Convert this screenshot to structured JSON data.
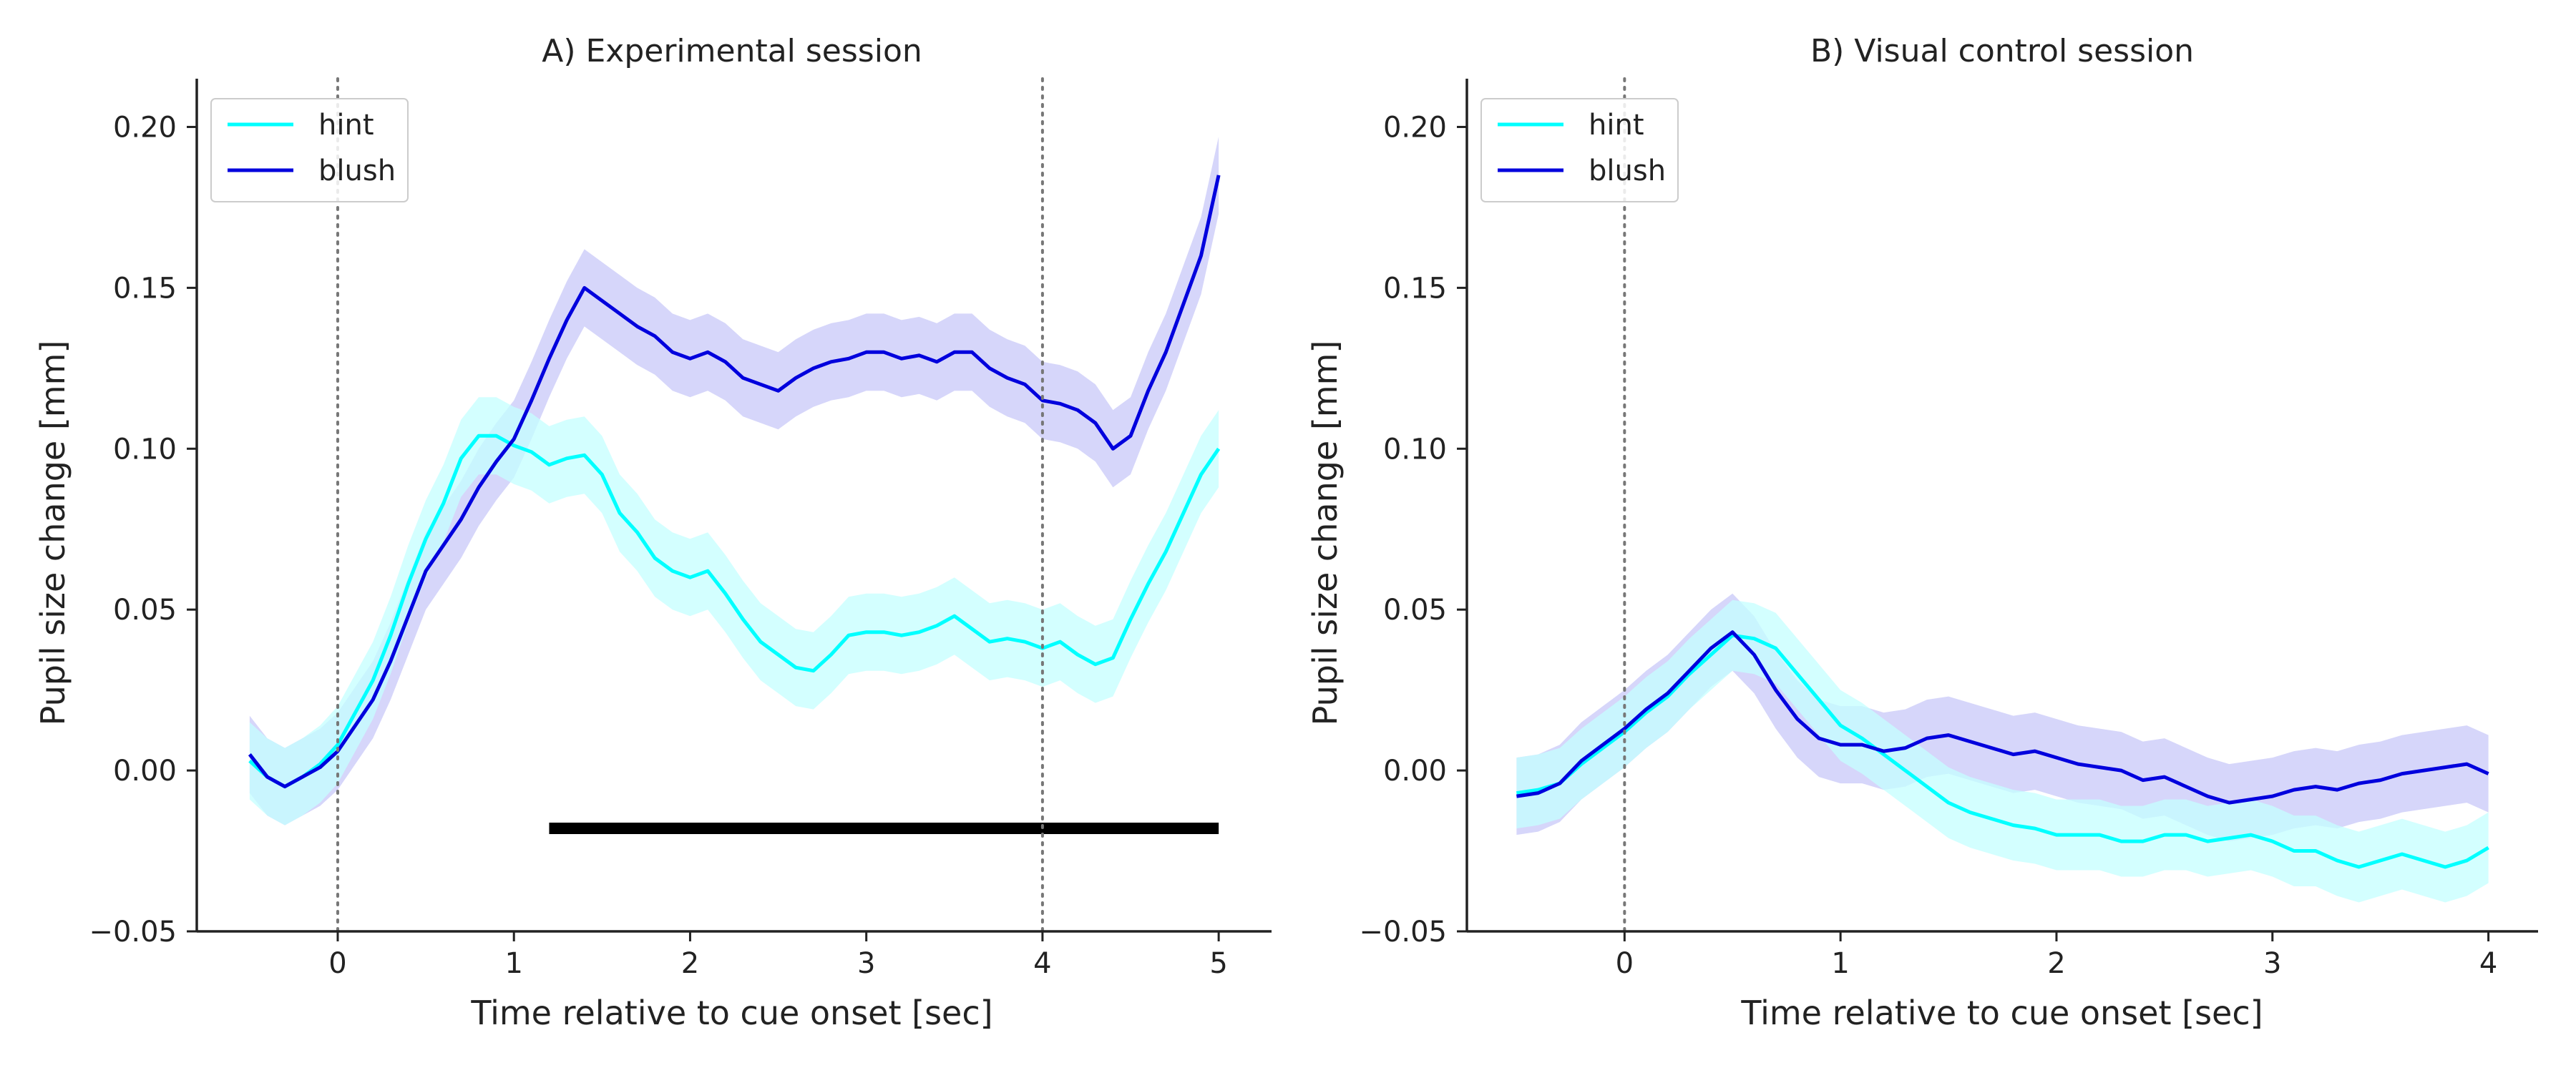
{
  "chart_data": [
    {
      "type": "line",
      "title": "A) Experimental session",
      "xlabel": "Time relative to cue onset [sec]",
      "ylabel": "Pupil size change [mm]",
      "xlim": [
        -0.8,
        5.3
      ],
      "ylim": [
        -0.05,
        0.215
      ],
      "xticks": [
        0,
        1,
        2,
        3,
        4,
        5
      ],
      "yticks": [
        -0.05,
        0.0,
        0.05,
        0.1,
        0.15,
        0.2
      ],
      "xtick_labels": [
        "0",
        "1",
        "2",
        "3",
        "4",
        "5"
      ],
      "ytick_labels": [
        "−0.05",
        "0.00",
        "0.05",
        "0.10",
        "0.15",
        "0.20"
      ],
      "vlines": [
        0,
        4
      ],
      "grid": false,
      "legend_position": "top-left",
      "significance_bar": {
        "x": [
          1.2,
          5.0
        ],
        "y": -0.018
      },
      "series": [
        {
          "name": "hint",
          "color": "#00FFFF",
          "x": [
            -0.5,
            -0.4,
            -0.3,
            -0.2,
            -0.1,
            0.0,
            0.1,
            0.2,
            0.3,
            0.4,
            0.5,
            0.6,
            0.7,
            0.8,
            0.9,
            1.0,
            1.1,
            1.2,
            1.3,
            1.4,
            1.5,
            1.6,
            1.7,
            1.8,
            1.9,
            2.0,
            2.1,
            2.2,
            2.3,
            2.4,
            2.5,
            2.6,
            2.7,
            2.8,
            2.9,
            3.0,
            3.1,
            3.2,
            3.3,
            3.4,
            3.5,
            3.6,
            3.7,
            3.8,
            3.9,
            4.0,
            4.1,
            4.2,
            4.3,
            4.4,
            4.5,
            4.6,
            4.7,
            4.8,
            4.9,
            5.0
          ],
          "y": [
            0.003,
            -0.002,
            -0.005,
            -0.002,
            0.002,
            0.008,
            0.018,
            0.028,
            0.042,
            0.058,
            0.072,
            0.083,
            0.097,
            0.104,
            0.104,
            0.101,
            0.099,
            0.095,
            0.097,
            0.098,
            0.092,
            0.08,
            0.074,
            0.066,
            0.062,
            0.06,
            0.062,
            0.055,
            0.047,
            0.04,
            0.036,
            0.032,
            0.031,
            0.036,
            0.042,
            0.043,
            0.043,
            0.042,
            0.043,
            0.045,
            0.048,
            0.044,
            0.04,
            0.041,
            0.04,
            0.038,
            0.04,
            0.036,
            0.033,
            0.035,
            0.047,
            0.058,
            0.068,
            0.08,
            0.092,
            0.1
          ],
          "ci_halfwidth": 0.012
        },
        {
          "name": "blush",
          "color": "#0000DD",
          "x": [
            -0.5,
            -0.4,
            -0.3,
            -0.2,
            -0.1,
            0.0,
            0.1,
            0.2,
            0.3,
            0.4,
            0.5,
            0.6,
            0.7,
            0.8,
            0.9,
            1.0,
            1.1,
            1.2,
            1.3,
            1.4,
            1.5,
            1.6,
            1.7,
            1.8,
            1.9,
            2.0,
            2.1,
            2.2,
            2.3,
            2.4,
            2.5,
            2.6,
            2.7,
            2.8,
            2.9,
            3.0,
            3.1,
            3.2,
            3.3,
            3.4,
            3.5,
            3.6,
            3.7,
            3.8,
            3.9,
            4.0,
            4.1,
            4.2,
            4.3,
            4.4,
            4.5,
            4.6,
            4.7,
            4.8,
            4.9,
            5.0
          ],
          "y": [
            0.005,
            -0.002,
            -0.005,
            -0.002,
            0.001,
            0.006,
            0.014,
            0.022,
            0.034,
            0.048,
            0.062,
            0.07,
            0.078,
            0.088,
            0.096,
            0.103,
            0.115,
            0.128,
            0.14,
            0.15,
            0.146,
            0.142,
            0.138,
            0.135,
            0.13,
            0.128,
            0.13,
            0.127,
            0.122,
            0.12,
            0.118,
            0.122,
            0.125,
            0.127,
            0.128,
            0.13,
            0.13,
            0.128,
            0.129,
            0.127,
            0.13,
            0.13,
            0.125,
            0.122,
            0.12,
            0.115,
            0.114,
            0.112,
            0.108,
            0.1,
            0.104,
            0.118,
            0.13,
            0.145,
            0.16,
            0.185
          ],
          "ci_halfwidth": 0.012
        }
      ]
    },
    {
      "type": "line",
      "title": "B) Visual control session",
      "xlabel": "Time relative to cue onset [sec]",
      "ylabel": "Pupil size change [mm]",
      "xlim": [
        -0.73,
        4.23
      ],
      "ylim": [
        -0.05,
        0.215
      ],
      "xticks": [
        0,
        1,
        2,
        3,
        4
      ],
      "yticks": [
        -0.05,
        0.0,
        0.05,
        0.1,
        0.15,
        0.2
      ],
      "xtick_labels": [
        "0",
        "1",
        "2",
        "3",
        "4"
      ],
      "ytick_labels": [
        "−0.05",
        "0.00",
        "0.05",
        "0.10",
        "0.15",
        "0.20"
      ],
      "vlines": [
        0
      ],
      "grid": false,
      "legend_position": "top-left",
      "series": [
        {
          "name": "hint",
          "color": "#00FFFF",
          "x": [
            -0.5,
            -0.4,
            -0.3,
            -0.2,
            -0.1,
            0.0,
            0.1,
            0.2,
            0.3,
            0.4,
            0.5,
            0.6,
            0.7,
            0.8,
            0.9,
            1.0,
            1.1,
            1.2,
            1.3,
            1.4,
            1.5,
            1.6,
            1.7,
            1.8,
            1.9,
            2.0,
            2.1,
            2.2,
            2.3,
            2.4,
            2.5,
            2.6,
            2.7,
            2.8,
            2.9,
            3.0,
            3.1,
            3.2,
            3.3,
            3.4,
            3.5,
            3.6,
            3.7,
            3.8,
            3.9,
            4.0
          ],
          "y": [
            -0.007,
            -0.006,
            -0.004,
            0.002,
            0.007,
            0.012,
            0.018,
            0.023,
            0.03,
            0.036,
            0.042,
            0.041,
            0.038,
            0.03,
            0.022,
            0.014,
            0.01,
            0.005,
            0.0,
            -0.005,
            -0.01,
            -0.013,
            -0.015,
            -0.017,
            -0.018,
            -0.02,
            -0.02,
            -0.02,
            -0.022,
            -0.022,
            -0.02,
            -0.02,
            -0.022,
            -0.021,
            -0.02,
            -0.022,
            -0.025,
            -0.025,
            -0.028,
            -0.03,
            -0.028,
            -0.026,
            -0.028,
            -0.03,
            -0.028,
            -0.024
          ],
          "ci_halfwidth": 0.011
        },
        {
          "name": "blush",
          "color": "#0000DD",
          "x": [
            -0.5,
            -0.4,
            -0.3,
            -0.2,
            -0.1,
            0.0,
            0.1,
            0.2,
            0.3,
            0.4,
            0.5,
            0.6,
            0.7,
            0.8,
            0.9,
            1.0,
            1.1,
            1.2,
            1.3,
            1.4,
            1.5,
            1.6,
            1.7,
            1.8,
            1.9,
            2.0,
            2.1,
            2.2,
            2.3,
            2.4,
            2.5,
            2.6,
            2.7,
            2.8,
            2.9,
            3.0,
            3.1,
            3.2,
            3.3,
            3.4,
            3.5,
            3.6,
            3.7,
            3.8,
            3.9,
            4.0
          ],
          "y": [
            -0.008,
            -0.007,
            -0.004,
            0.003,
            0.008,
            0.013,
            0.019,
            0.024,
            0.031,
            0.038,
            0.043,
            0.036,
            0.025,
            0.016,
            0.01,
            0.008,
            0.008,
            0.006,
            0.007,
            0.01,
            0.011,
            0.009,
            0.007,
            0.005,
            0.006,
            0.004,
            0.002,
            0.001,
            0.0,
            -0.003,
            -0.002,
            -0.005,
            -0.008,
            -0.01,
            -0.009,
            -0.008,
            -0.006,
            -0.005,
            -0.006,
            -0.004,
            -0.003,
            -0.001,
            0.0,
            0.001,
            0.002,
            -0.001
          ],
          "ci_halfwidth": 0.012
        }
      ]
    }
  ]
}
